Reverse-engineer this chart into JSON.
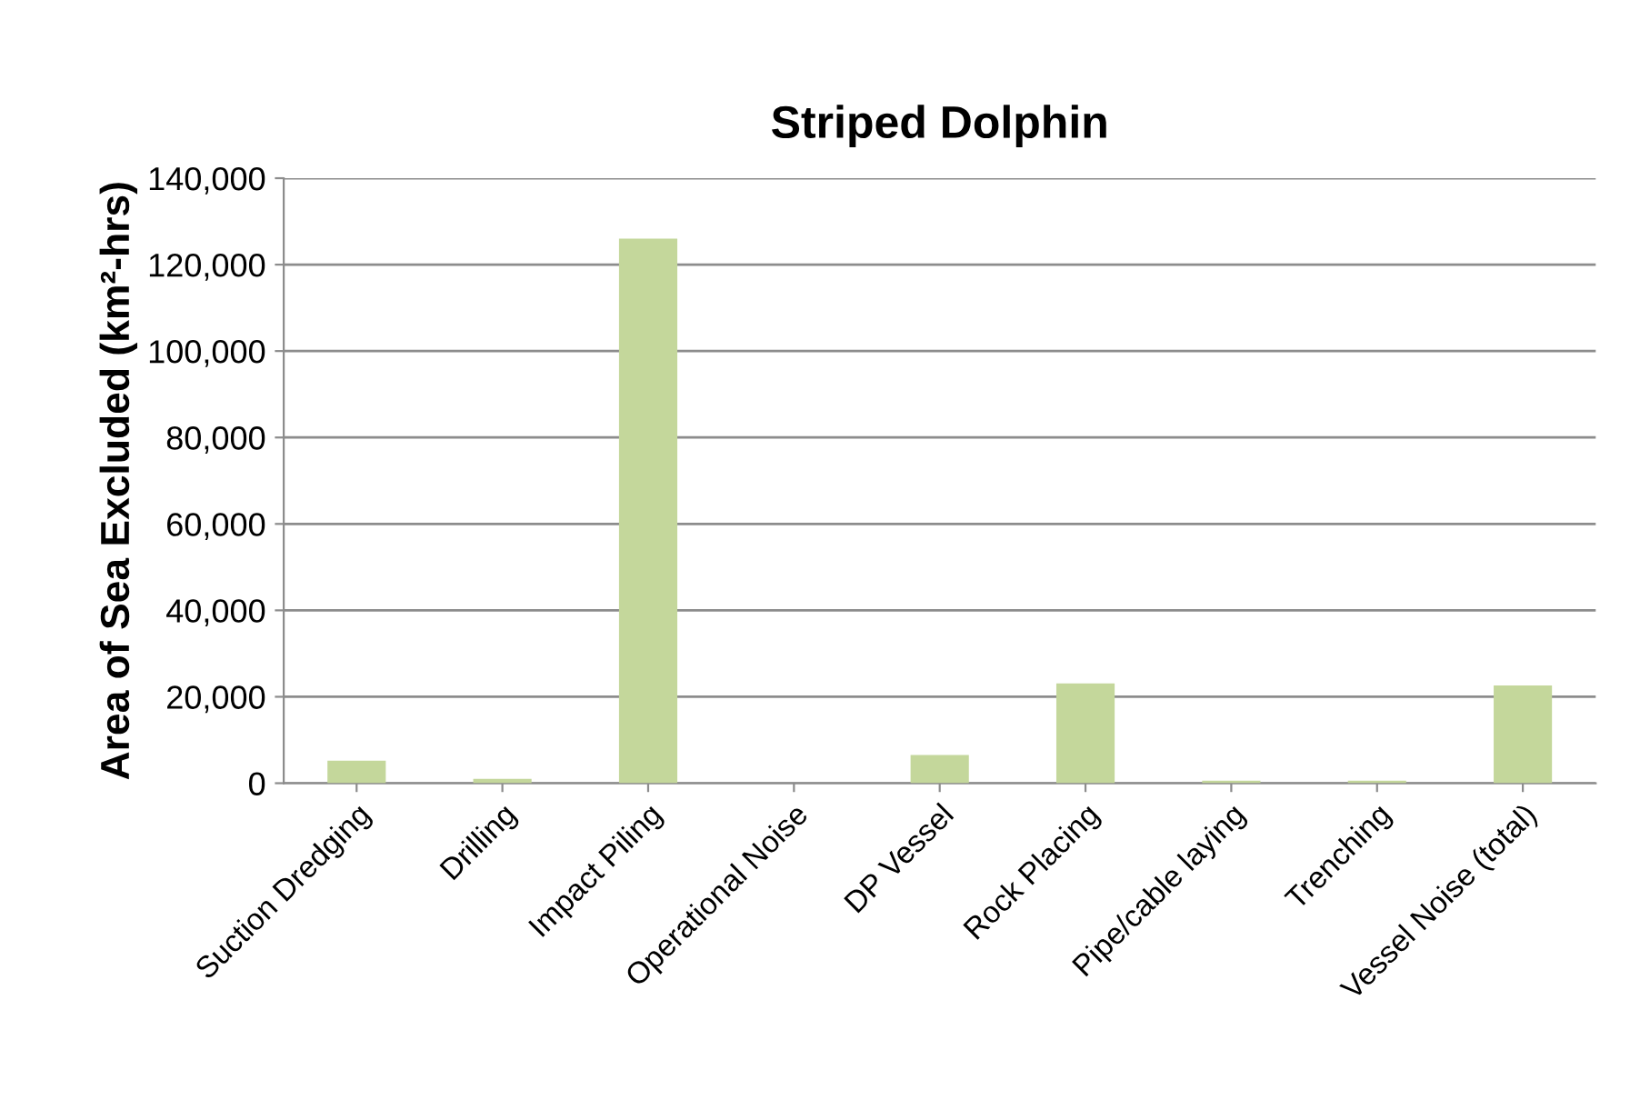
{
  "chart_data": {
    "type": "bar",
    "title": "Striped Dolphin",
    "ylabel": "Area of Sea Excluded (km²-hrs)",
    "categories": [
      "Suction Dredging",
      "Drilling",
      "Impact Piling",
      "Operational Noise",
      "DP Vessel",
      "Rock Placing",
      "Pipe/cable laying",
      "Trenching",
      "Vessel Noise (total)"
    ],
    "values": [
      5200,
      1000,
      126000,
      0,
      6500,
      23100,
      600,
      600,
      22600
    ],
    "color": "#c4d79b",
    "ylim": [
      0,
      140000
    ],
    "yticks": [
      {
        "value": 0,
        "label": "0"
      },
      {
        "value": 20000,
        "label": "20,000"
      },
      {
        "value": 40000,
        "label": "40,000"
      },
      {
        "value": 60000,
        "label": "60,000"
      },
      {
        "value": 80000,
        "label": "80,000"
      },
      {
        "value": 100000,
        "label": "100,000"
      },
      {
        "value": 120000,
        "label": "120,000"
      },
      {
        "value": 140000,
        "label": "140,000"
      }
    ],
    "grid": "y",
    "legend": false
  }
}
